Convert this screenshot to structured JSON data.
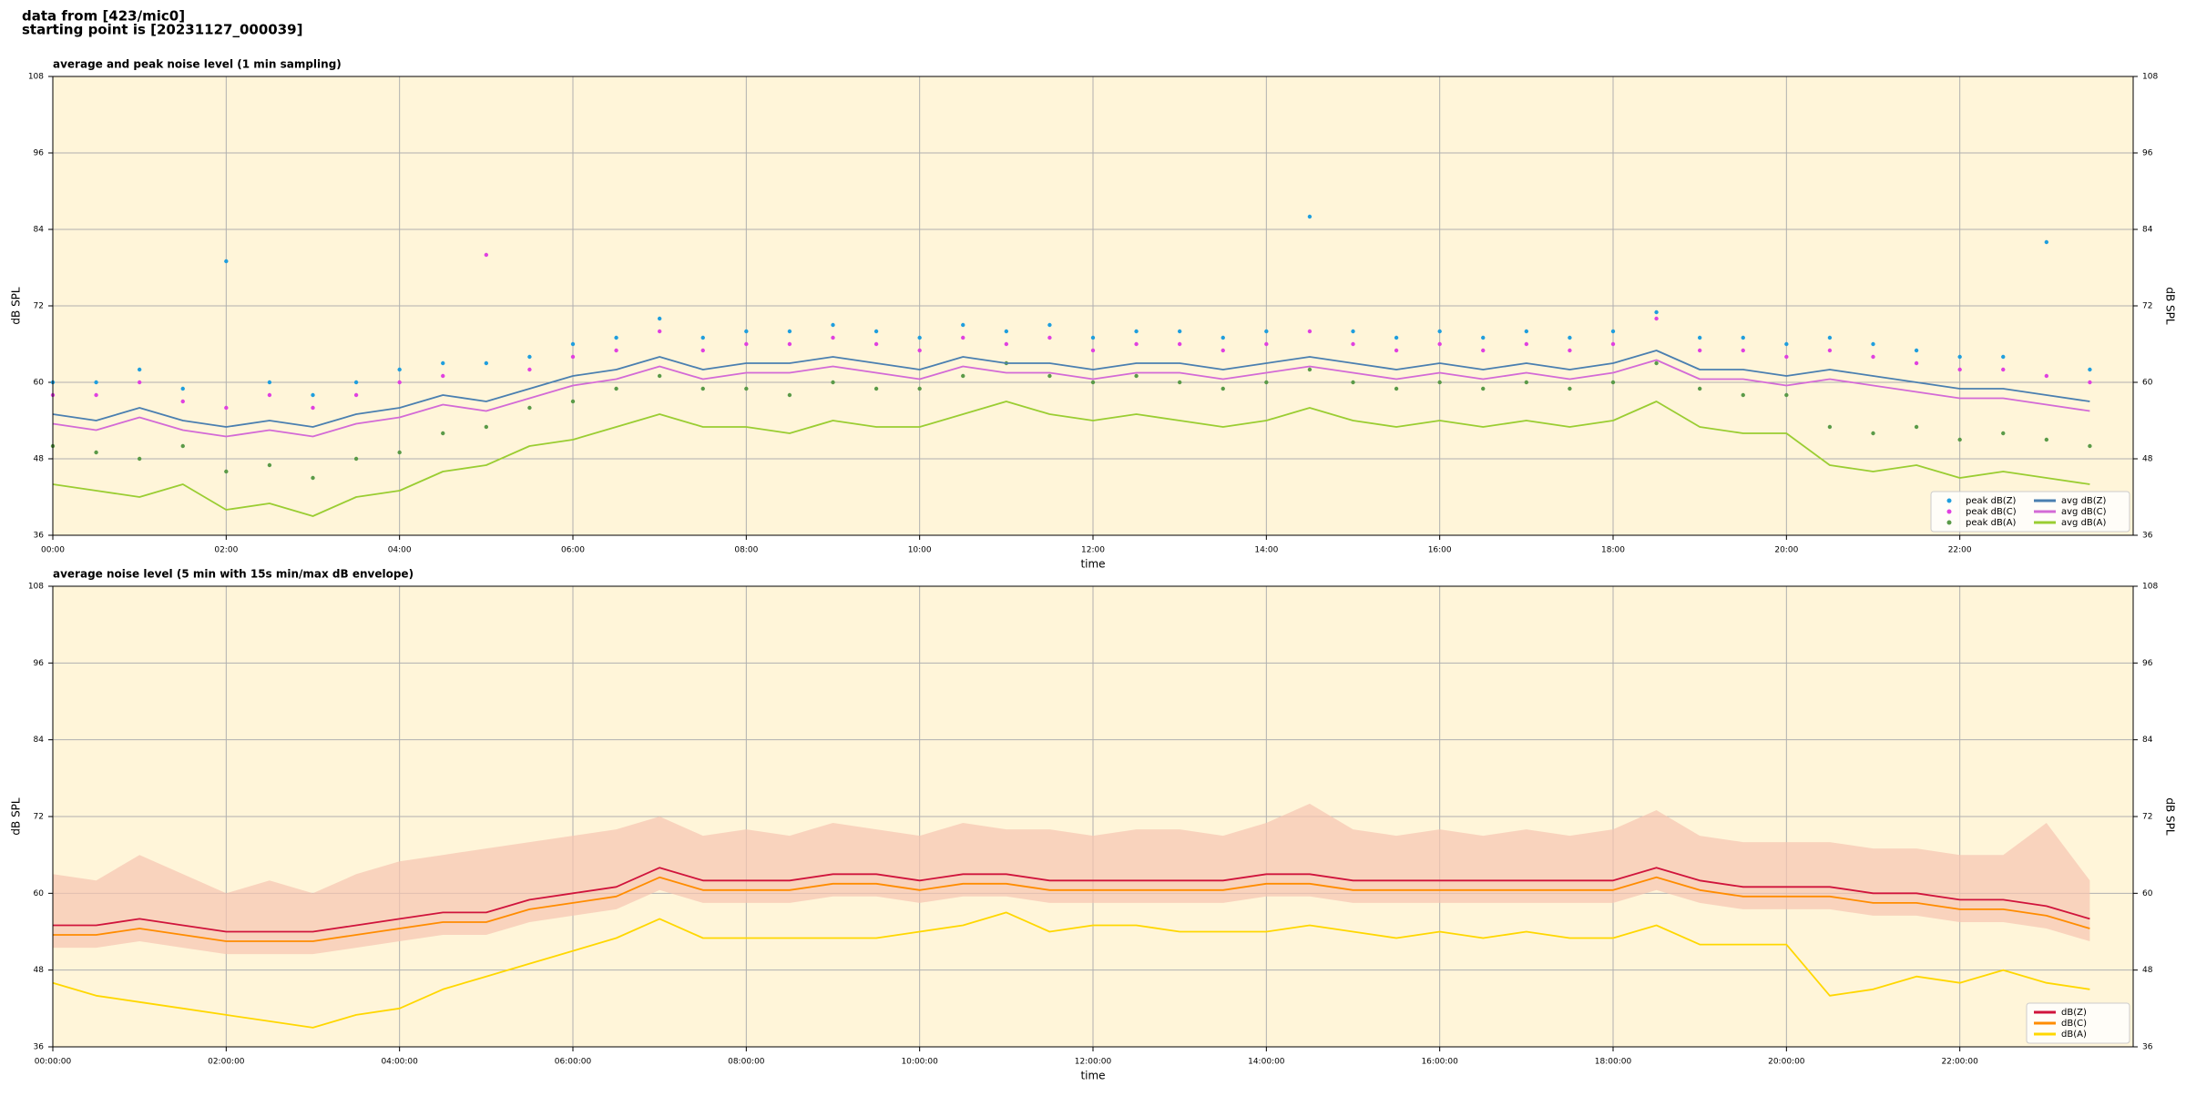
{
  "header": {
    "lines": [
      "data from [423/mic0]",
      "starting point is [20231127_000039]"
    ]
  },
  "chart_data": [
    {
      "type": "line",
      "title": "average and peak noise level (1 min sampling)",
      "xlabel": "time",
      "ylabel": "dB SPL",
      "y2label": "dB SPL",
      "background": "#fff5d9",
      "grid": true,
      "legend": "lower right",
      "legend_columns": 2,
      "xlim": [
        0,
        24
      ],
      "ylim": [
        36,
        108
      ],
      "y2lim": [
        36,
        108
      ],
      "xticks": [
        {
          "value": 0,
          "label": "00:00"
        },
        {
          "value": 2,
          "label": "02:00"
        },
        {
          "value": 4,
          "label": "04:00"
        },
        {
          "value": 6,
          "label": "06:00"
        },
        {
          "value": 8,
          "label": "08:00"
        },
        {
          "value": 10,
          "label": "10:00"
        },
        {
          "value": 12,
          "label": "12:00"
        },
        {
          "value": 14,
          "label": "14:00"
        },
        {
          "value": 16,
          "label": "16:00"
        },
        {
          "value": 18,
          "label": "18:00"
        },
        {
          "value": 20,
          "label": "20:00"
        },
        {
          "value": 22,
          "label": "22:00"
        }
      ],
      "yticks": [
        36,
        48,
        60,
        72,
        84,
        96,
        108
      ],
      "y2ticks": [
        36,
        48,
        60,
        72,
        84,
        96,
        108
      ],
      "x": [
        0,
        0.5,
        1,
        1.5,
        2,
        2.5,
        3,
        3.5,
        4,
        4.5,
        5,
        5.5,
        6,
        6.5,
        7,
        7.5,
        8,
        8.5,
        9,
        9.5,
        10,
        10.5,
        11,
        11.5,
        12,
        12.5,
        13,
        13.5,
        14,
        14.5,
        15,
        15.5,
        16,
        16.5,
        17,
        17.5,
        18,
        18.5,
        19,
        19.5,
        20,
        20.5,
        21,
        21.5,
        22,
        22.5,
        23,
        23.5
      ],
      "series": [
        {
          "name": "peak dB(Z)",
          "color": "#1f9ede",
          "mode": "markers",
          "values": [
            60,
            60,
            62,
            59,
            79,
            60,
            58,
            60,
            62,
            63,
            63,
            64,
            66,
            67,
            70,
            67,
            68,
            68,
            69,
            68,
            67,
            69,
            68,
            69,
            67,
            68,
            68,
            67,
            68,
            86,
            68,
            67,
            68,
            67,
            68,
            67,
            68,
            71,
            67,
            67,
            66,
            67,
            66,
            65,
            64,
            64,
            82,
            62
          ]
        },
        {
          "name": "peak dB(C)",
          "color": "#e040e0",
          "mode": "markers",
          "values": [
            58,
            58,
            60,
            57,
            56,
            58,
            56,
            58,
            60,
            61,
            80,
            62,
            64,
            65,
            68,
            65,
            66,
            66,
            67,
            66,
            65,
            67,
            66,
            67,
            65,
            66,
            66,
            65,
            66,
            68,
            66,
            65,
            66,
            65,
            66,
            65,
            66,
            70,
            65,
            65,
            64,
            65,
            64,
            63,
            62,
            62,
            61,
            60
          ]
        },
        {
          "name": "peak dB(A)",
          "color": "#5a9a48",
          "mode": "markers",
          "values": [
            50,
            49,
            48,
            50,
            46,
            47,
            45,
            48,
            49,
            52,
            53,
            56,
            57,
            59,
            61,
            59,
            59,
            58,
            60,
            59,
            59,
            61,
            63,
            61,
            60,
            61,
            60,
            59,
            60,
            62,
            60,
            59,
            60,
            59,
            60,
            59,
            60,
            63,
            59,
            58,
            58,
            53,
            52,
            53,
            51,
            52,
            51,
            50
          ]
        },
        {
          "name": "avg dB(Z)",
          "color": "#4a7fb0",
          "mode": "lines",
          "values": [
            55,
            54,
            56,
            54,
            53,
            54,
            53,
            55,
            56,
            58,
            57,
            59,
            61,
            62,
            64,
            62,
            63,
            63,
            64,
            63,
            62,
            64,
            63,
            63,
            62,
            63,
            63,
            62,
            63,
            64,
            63,
            62,
            63,
            62,
            63,
            62,
            63,
            65,
            62,
            62,
            61,
            62,
            61,
            60,
            59,
            59,
            58,
            57
          ]
        },
        {
          "name": "avg dB(C)",
          "color": "#d36ad6",
          "mode": "lines",
          "values": [
            53.5,
            52.5,
            54.5,
            52.5,
            51.5,
            52.5,
            51.5,
            53.5,
            54.5,
            56.5,
            55.5,
            57.5,
            59.5,
            60.5,
            62.5,
            60.5,
            61.5,
            61.5,
            62.5,
            61.5,
            60.5,
            62.5,
            61.5,
            61.5,
            60.5,
            61.5,
            61.5,
            60.5,
            61.5,
            62.5,
            61.5,
            60.5,
            61.5,
            60.5,
            61.5,
            60.5,
            61.5,
            63.5,
            60.5,
            60.5,
            59.5,
            60.5,
            59.5,
            58.5,
            57.5,
            57.5,
            56.5,
            55.5
          ]
        },
        {
          "name": "avg dB(A)",
          "color": "#9acd32",
          "mode": "lines",
          "values": [
            44,
            43,
            42,
            44,
            40,
            41,
            39,
            42,
            43,
            46,
            47,
            50,
            51,
            53,
            55,
            53,
            53,
            52,
            54,
            53,
            53,
            55,
            57,
            55,
            54,
            55,
            54,
            53,
            54,
            56,
            54,
            53,
            54,
            53,
            54,
            53,
            54,
            57,
            53,
            52,
            52,
            47,
            46,
            47,
            45,
            46,
            45,
            44
          ]
        }
      ]
    },
    {
      "type": "line",
      "title": "average noise level (5 min with 15s min/max dB envelope)",
      "xlabel": "time",
      "ylabel": "dB SPL",
      "y2label": "dB SPL",
      "background": "#fff5d9",
      "grid": true,
      "legend": "lower right",
      "legend_columns": 1,
      "xlim": [
        0,
        24
      ],
      "ylim": [
        36,
        108
      ],
      "y2lim": [
        36,
        108
      ],
      "xticks": [
        {
          "value": 0,
          "label": "00:00:00"
        },
        {
          "value": 2,
          "label": "02:00:00"
        },
        {
          "value": 4,
          "label": "04:00:00"
        },
        {
          "value": 6,
          "label": "06:00:00"
        },
        {
          "value": 8,
          "label": "08:00:00"
        },
        {
          "value": 10,
          "label": "10:00:00"
        },
        {
          "value": 12,
          "label": "12:00:00"
        },
        {
          "value": 14,
          "label": "14:00:00"
        },
        {
          "value": 16,
          "label": "16:00:00"
        },
        {
          "value": 18,
          "label": "18:00:00"
        },
        {
          "value": 20,
          "label": "20:00:00"
        },
        {
          "value": 22,
          "label": "22:00:00"
        }
      ],
      "yticks": [
        36,
        48,
        60,
        72,
        84,
        96,
        108
      ],
      "y2ticks": [
        36,
        48,
        60,
        72,
        84,
        96,
        108
      ],
      "x": [
        0,
        0.5,
        1,
        1.5,
        2,
        2.5,
        3,
        3.5,
        4,
        4.5,
        5,
        5.5,
        6,
        6.5,
        7,
        7.5,
        8,
        8.5,
        9,
        9.5,
        10,
        10.5,
        11,
        11.5,
        12,
        12.5,
        13,
        13.5,
        14,
        14.5,
        15,
        15.5,
        16,
        16.5,
        17,
        17.5,
        18,
        18.5,
        19,
        19.5,
        20,
        20.5,
        21,
        21.5,
        22,
        22.5,
        23,
        23.5
      ],
      "envelope": {
        "color": "#f6c4b0",
        "lower": [
          51.5,
          51.5,
          52.5,
          51.5,
          50.5,
          50.5,
          50.5,
          51.5,
          52.5,
          53.5,
          53.5,
          55.5,
          56.5,
          57.5,
          60.5,
          58.5,
          58.5,
          58.5,
          59.5,
          59.5,
          58.5,
          59.5,
          59.5,
          58.5,
          58.5,
          58.5,
          58.5,
          58.5,
          59.5,
          59.5,
          58.5,
          58.5,
          58.5,
          58.5,
          58.5,
          58.5,
          58.5,
          60.5,
          58.5,
          57.5,
          57.5,
          57.5,
          56.5,
          56.5,
          55.5,
          55.5,
          54.5,
          52.5
        ],
        "upper": [
          63,
          62,
          66,
          63,
          60,
          62,
          60,
          63,
          65,
          66,
          67,
          68,
          69,
          70,
          72,
          69,
          70,
          69,
          71,
          70,
          69,
          71,
          70,
          70,
          69,
          70,
          70,
          69,
          71,
          74,
          70,
          69,
          70,
          69,
          70,
          69,
          70,
          73,
          69,
          68,
          68,
          68,
          67,
          67,
          66,
          66,
          71,
          62
        ]
      },
      "series": [
        {
          "name": "dB(Z)",
          "color": "#d0143c",
          "mode": "lines",
          "values": [
            55,
            55,
            56,
            55,
            54,
            54,
            54,
            55,
            56,
            57,
            57,
            59,
            60,
            61,
            64,
            62,
            62,
            62,
            63,
            63,
            62,
            63,
            63,
            62,
            62,
            62,
            62,
            62,
            63,
            63,
            62,
            62,
            62,
            62,
            62,
            62,
            62,
            64,
            62,
            61,
            61,
            61,
            60,
            60,
            59,
            59,
            58,
            56
          ]
        },
        {
          "name": "dB(C)",
          "color": "#ff8c00",
          "mode": "lines",
          "values": [
            53.5,
            53.5,
            54.5,
            53.5,
            52.5,
            52.5,
            52.5,
            53.5,
            54.5,
            55.5,
            55.5,
            57.5,
            58.5,
            59.5,
            62.5,
            60.5,
            60.5,
            60.5,
            61.5,
            61.5,
            60.5,
            61.5,
            61.5,
            60.5,
            60.5,
            60.5,
            60.5,
            60.5,
            61.5,
            61.5,
            60.5,
            60.5,
            60.5,
            60.5,
            60.5,
            60.5,
            60.5,
            62.5,
            60.5,
            59.5,
            59.5,
            59.5,
            58.5,
            58.5,
            57.5,
            57.5,
            56.5,
            54.5
          ]
        },
        {
          "name": "dB(A)",
          "color": "#ffd700",
          "mode": "lines",
          "values": [
            46,
            44,
            43,
            42,
            41,
            40,
            39,
            41,
            42,
            45,
            47,
            49,
            51,
            53,
            56,
            53,
            53,
            53,
            53,
            53,
            54,
            55,
            57,
            54,
            55,
            55,
            54,
            54,
            54,
            55,
            54,
            53,
            54,
            53,
            54,
            53,
            53,
            55,
            52,
            52,
            52,
            44,
            45,
            47,
            46,
            48,
            46,
            45
          ]
        }
      ]
    }
  ]
}
